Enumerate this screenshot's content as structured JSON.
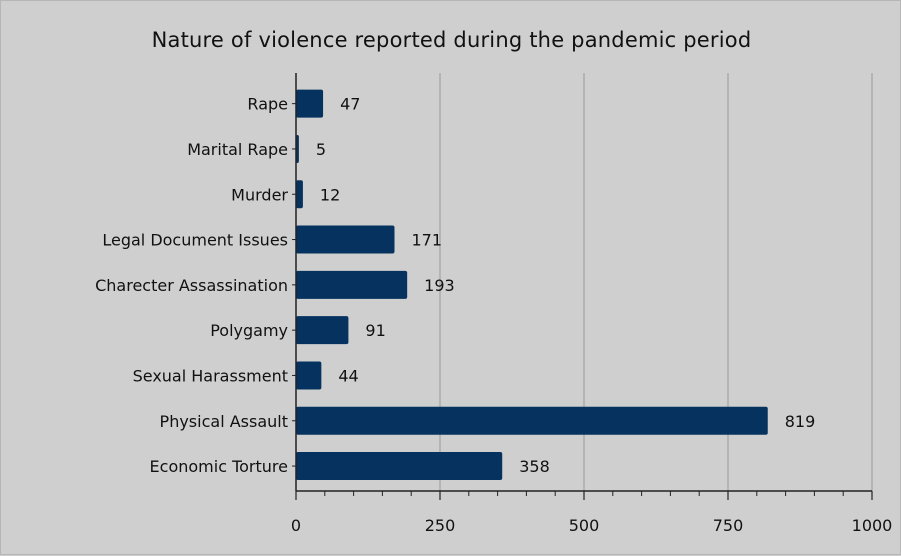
{
  "chart_data": {
    "type": "bar",
    "orientation": "horizontal",
    "title": "Nature of violence reported during the pandemic period",
    "xlabel": "",
    "ylabel": "",
    "categories": [
      "Rape",
      "Marital Rape",
      "Murder",
      "Legal Document Issues",
      "Charecter Assassination",
      "Polygamy",
      "Sexual Harassment",
      "Physical Assault",
      "Economic Torture"
    ],
    "values": [
      47,
      5,
      12,
      171,
      193,
      91,
      44,
      819,
      358
    ],
    "xlim": [
      0,
      1000
    ],
    "xticks": [
      0,
      250,
      500,
      750,
      1000
    ],
    "grid": "vertical",
    "legend": "none",
    "bar_color": "#06325f",
    "grid_color": "#9a9a9a",
    "axis_color": "#222222",
    "background_color": "#cfcfcf"
  }
}
